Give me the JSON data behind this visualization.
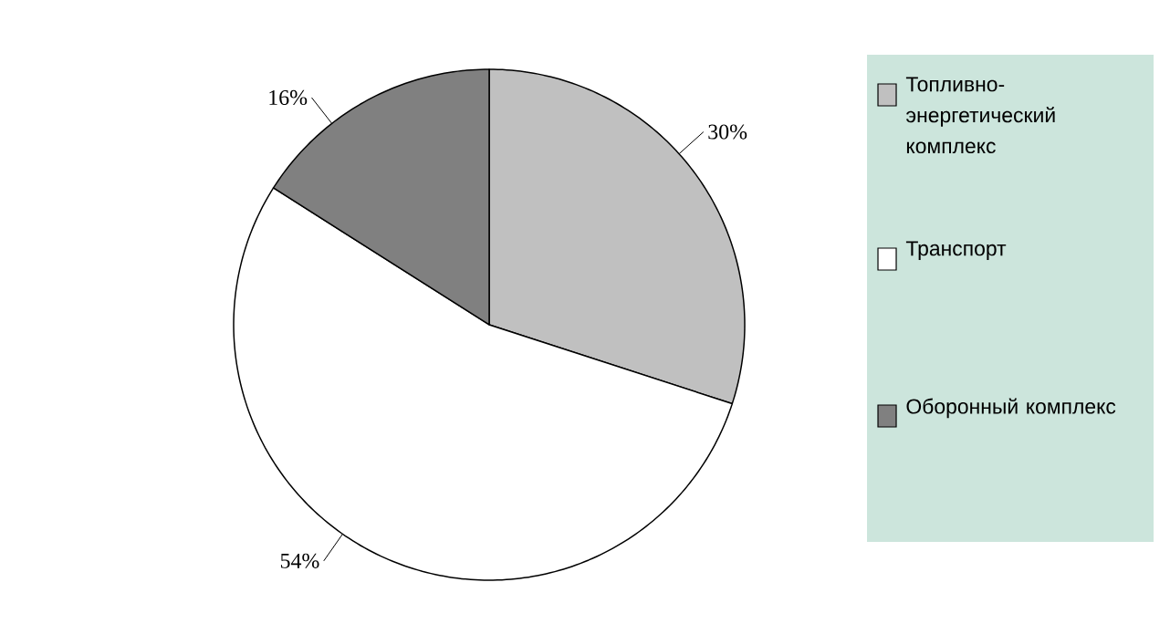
{
  "chart_data": {
    "type": "pie",
    "categories": [
      "Топливно-энергетический комплекс",
      "Транспорт",
      "Оборонный комплекс"
    ],
    "values": [
      30,
      54,
      16
    ],
    "colors": [
      "#c0c0c0",
      "#ffffff",
      "#808080"
    ],
    "value_labels": [
      "30%",
      "54%",
      "16%"
    ],
    "legend": "right"
  }
}
